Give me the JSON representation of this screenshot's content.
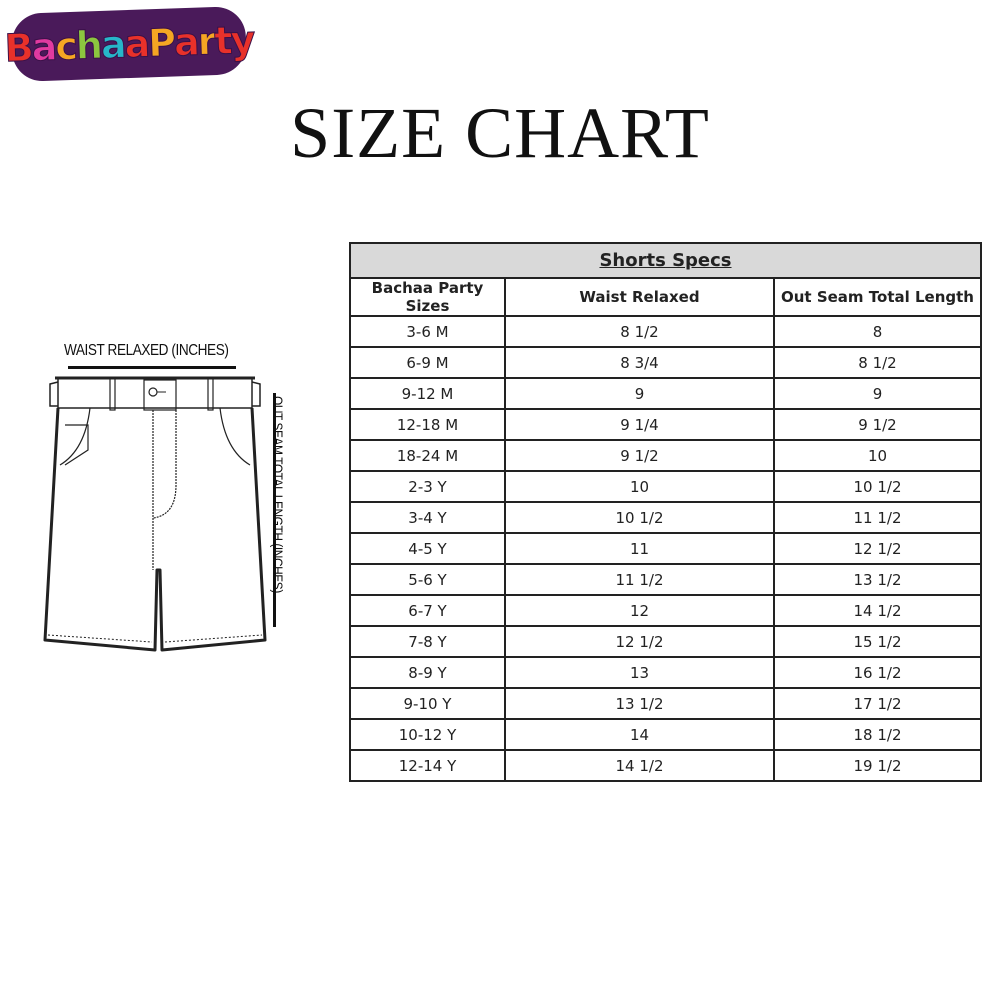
{
  "logo": {
    "text": "BachaaParty",
    "colors": [
      "#e8312a",
      "#e13aa0",
      "#f5a623",
      "#8cc63f",
      "#27b6c9",
      "#e8312a",
      "#f5a623",
      "#e8312a",
      "#f5a623",
      "#e8312a",
      "#e8312a"
    ]
  },
  "title": "SIZE CHART",
  "diagram": {
    "waist_label": "WAIST RELAXED (INCHES)",
    "seam_label": "OUT SEAM TOTAL LENGTH (INCHES)"
  },
  "table": {
    "caption": "Shorts Specs",
    "headers": [
      "Bachaa Party Sizes",
      "Waist Relaxed",
      "Out Seam Total Length"
    ],
    "rows": [
      [
        "3-6 M",
        "8 1/2",
        "8"
      ],
      [
        "6-9 M",
        "8 3/4",
        "8 1/2"
      ],
      [
        "9-12 M",
        "9",
        "9"
      ],
      [
        "12-18 M",
        "9 1/4",
        "9 1/2"
      ],
      [
        "18-24 M",
        "9 1/2",
        "10"
      ],
      [
        "2-3 Y",
        "10",
        "10 1/2"
      ],
      [
        "3-4 Y",
        "10 1/2",
        "11 1/2"
      ],
      [
        "4-5 Y",
        "11",
        "12 1/2"
      ],
      [
        "5-6 Y",
        "11 1/2",
        "13 1/2"
      ],
      [
        "6-7 Y",
        "12",
        "14 1/2"
      ],
      [
        "7-8 Y",
        "12 1/2",
        "15 1/2"
      ],
      [
        "8-9 Y",
        "13",
        "16 1/2"
      ],
      [
        "9-10 Y",
        "13 1/2",
        "17 1/2"
      ],
      [
        "10-12 Y",
        "14",
        "18 1/2"
      ],
      [
        "12-14 Y",
        "14 1/2",
        "19 1/2"
      ]
    ]
  }
}
